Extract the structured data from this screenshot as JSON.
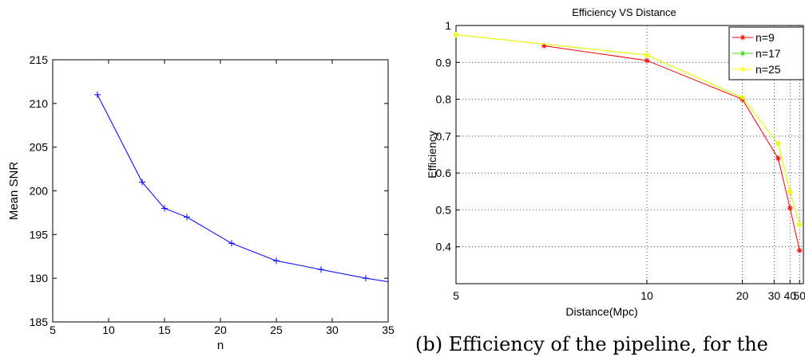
{
  "chart_data": [
    {
      "type": "line",
      "title": "",
      "xlabel": "n",
      "ylabel": "Mean SNR",
      "xlim": [
        5,
        35
      ],
      "ylim": [
        185,
        215
      ],
      "xticks": [
        5,
        10,
        15,
        20,
        25,
        30,
        35
      ],
      "yticks": [
        185,
        190,
        195,
        200,
        205,
        210,
        215
      ],
      "grid": false,
      "series": [
        {
          "color": "#0000ff",
          "marker": "+",
          "x": [
            9,
            13,
            15,
            17,
            21,
            25,
            29,
            33,
            35
          ],
          "y": [
            211,
            201,
            198,
            197,
            194,
            192,
            191,
            190,
            189.6
          ]
        }
      ]
    },
    {
      "type": "line",
      "title": "Efficiency VS Distance",
      "xlabel": "Distance(Mpc)",
      "ylabel": "Efficiency",
      "x_scale": "reciprocal",
      "xlim_reciprocal": [
        0.018,
        0.2
      ],
      "xticks": [
        50,
        40,
        30,
        20,
        10,
        5
      ],
      "ylim": [
        0.3,
        1.0
      ],
      "yticks": [
        0.4,
        0.5,
        0.6,
        0.7,
        0.8,
        0.9,
        1
      ],
      "ytick_labels": [
        "0.4",
        "0.5",
        "0.6",
        "0.7",
        "0.8",
        "0.9",
        "1"
      ],
      "grid": true,
      "legend_position": "top-right",
      "series": [
        {
          "name": "n=9",
          "color": "#ff0000",
          "marker": "*",
          "x": [
            50,
            40,
            32,
            20,
            10,
            6.5
          ],
          "y": [
            0.39,
            0.505,
            0.64,
            0.8,
            0.905,
            0.945
          ]
        },
        {
          "name": "n=17",
          "color": "#33dd00",
          "marker": "*",
          "x": [
            50,
            40,
            32,
            20,
            10,
            5
          ],
          "y": [
            0.46,
            0.55,
            0.68,
            0.805,
            0.92,
            0.975
          ]
        },
        {
          "name": "n=25",
          "color": "#ffff00",
          "marker": "*",
          "x": [
            50,
            40,
            32,
            20,
            10,
            5
          ],
          "y": [
            0.46,
            0.55,
            0.68,
            0.805,
            0.92,
            0.975
          ]
        }
      ]
    }
  ],
  "caption": "(b) Efficiency of the pipeline, for the"
}
